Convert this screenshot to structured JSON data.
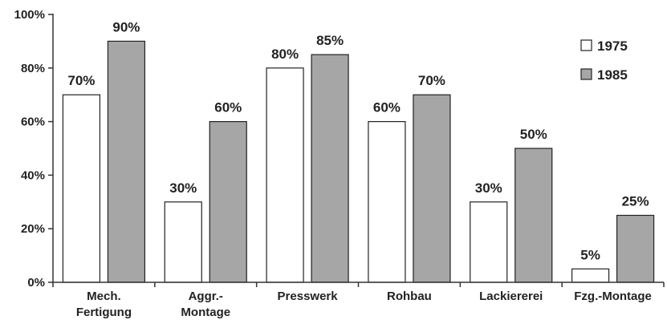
{
  "chart_data": {
    "type": "bar",
    "categories": [
      [
        "Mech.",
        "Fertigung"
      ],
      [
        "Aggr.-",
        "Montage"
      ],
      [
        "Presswerk"
      ],
      [
        "Rohbau"
      ],
      [
        "Lackiererei"
      ],
      [
        "Fzg.-Montage"
      ]
    ],
    "series": [
      {
        "name": "1975",
        "values": [
          70,
          30,
          80,
          60,
          30,
          5
        ],
        "labels": [
          "70%",
          "30%",
          "80%",
          "60%",
          "30%",
          "5%"
        ],
        "color": "#ffffff"
      },
      {
        "name": "1985",
        "values": [
          90,
          60,
          85,
          70,
          50,
          25
        ],
        "labels": [
          "90%",
          "60%",
          "85%",
          "70%",
          "50%",
          "25%"
        ],
        "color": "#a6a6a6"
      }
    ],
    "ylim": [
      0,
      100
    ],
    "yticks": [
      {
        "value": 0,
        "label": "0%"
      },
      {
        "value": 20,
        "label": "20%"
      },
      {
        "value": 40,
        "label": "40%"
      },
      {
        "value": 60,
        "label": "60%"
      },
      {
        "value": 80,
        "label": "80%"
      },
      {
        "value": 100,
        "label": "100%"
      }
    ],
    "legend_position": "top-right",
    "grid": false
  }
}
